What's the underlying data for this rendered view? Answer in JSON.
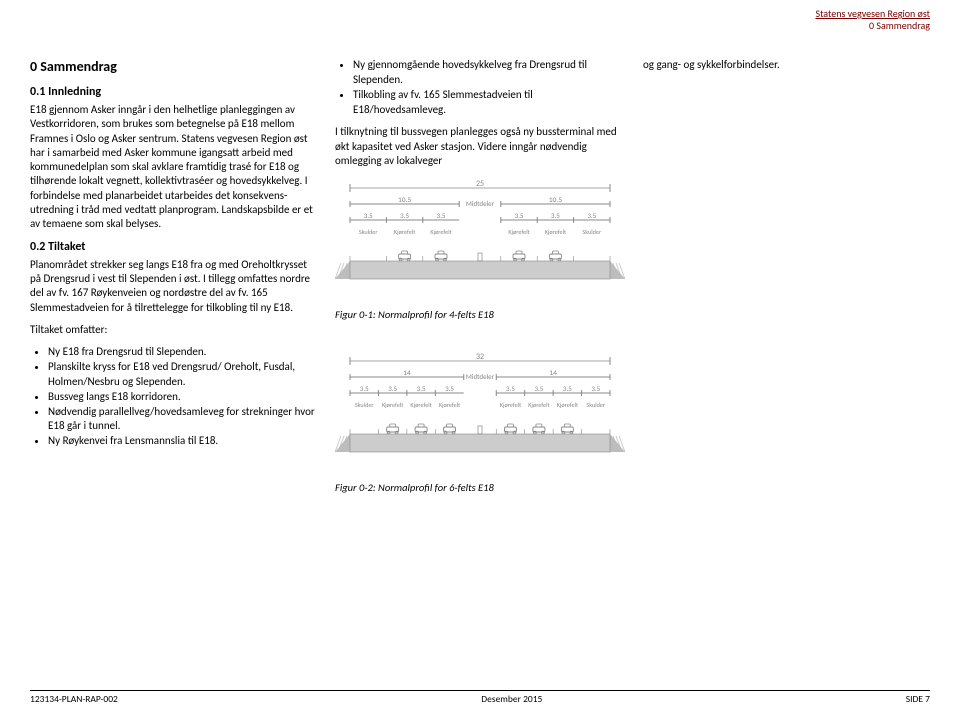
{
  "header": {
    "line1": "Statens vegvesen Region øst",
    "line2": "0 Sammendrag"
  },
  "section0": "0   Sammendrag",
  "sub01": "0.1   Innledning",
  "p01": "E18 gjennom Asker inngår i den helhetlige planleggingen av Vestkorridoren, som brukes som betegnelse på E18 mellom Framnes i Oslo og Asker sentrum. Statens vegvesen Region øst har i samarbeid med Asker kommune igangsatt arbeid med kommunedelplan som skal avklare framtidig trasé for E18 og tilhørende lokalt vegnett, kollektivtraséer og hovedsykkelveg. I forbindelse med planarbeidet utarbeides det konsekvens­utredning i tråd med vedtatt planprogram. Landskapsbilde er et av temaene som skal belyses.",
  "sub02": "0.2   Tiltaket",
  "p02": "Planområdet strekker seg langs E18 fra og med Oreholtkrysset på Drengsrud i vest til Slependen i øst. I tillegg omfattes nordre del av fv. 167 Røykenveien og nordøstre del av fv. 165 Slemmestadveien for å tilrettelegge for tilkobling til ny E18.",
  "p03": "Tiltaket omfatter:",
  "list1": [
    "Ny E18 fra Drengsrud til Slependen.",
    "Planskilte kryss for E18 ved Drengsrud/ Oreholt, Fusdal, Holmen/Nesbru og Slependen.",
    "Bussveg langs E18 korridoren.",
    "Nødvendig parallellveg/hovedsamleveg for strekninger hvor E18 går i tunnel.",
    "Ny Røykenvei fra Lensmannslia til E18."
  ],
  "list2": [
    "Ny gjennomgående hovedsykkelveg fra Drengsrud til Slependen.",
    "Tilkobling av fv. 165 Slemmestadveien til E18/hovedsamleveg."
  ],
  "p04": "I tilknytning til bussvegen planlegges også ny bussterminal med økt kapasitet ved Asker stasjon. Videre inngår nødvendig omlegging av lokalveger",
  "p05": "og gang- og sykkelforbindelser.",
  "fig1": {
    "caption": "Figur 0-1: Normalprofil for 4-felts E18",
    "total_width": 25,
    "spans": [
      10.5,
      10.5
    ],
    "mid": "Midtdeler",
    "subspans": [
      3.5,
      3.5,
      3.5,
      3.5,
      3.5,
      3.5
    ],
    "labels": [
      "Skulder",
      "Kjørefelt",
      "Kjørefelt",
      "Kjørefelt",
      "Kjørefelt",
      "Skulder"
    ],
    "road_color": "#cccccc",
    "line_color": "#888",
    "text_color": "#888",
    "car_color": "#888",
    "grass": "#bdbdbd"
  },
  "fig2": {
    "caption": "Figur 0-2: Normalprofil for 6-felts E18",
    "total_width": 32,
    "spans": [
      14,
      14
    ],
    "mid": "Midtdeler",
    "subspans": [
      3.5,
      3.5,
      3.5,
      3.5,
      3.5,
      3.5,
      3.5,
      3.5
    ],
    "labels": [
      "Skulder",
      "Kjørefelt",
      "Kjørefelt",
      "Kjørefelt",
      "Kjørefelt",
      "Kjørefelt",
      "Kjørefelt",
      "Skulder"
    ],
    "road_color": "#cccccc",
    "line_color": "#888",
    "text_color": "#888",
    "car_color": "#888",
    "grass": "#bdbdbd"
  },
  "footer": {
    "left": "123134-PLAN-RAP-002",
    "center": "Desember 2015",
    "right": "SIDE 7"
  }
}
